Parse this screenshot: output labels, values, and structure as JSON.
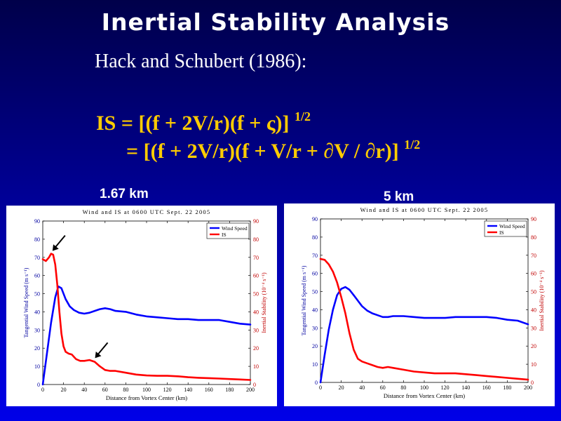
{
  "slide": {
    "title": "Inertial Stability Analysis",
    "subtitle": "Hack and Schubert (1986):",
    "equation_line1": "IS = [(f + 2V/r)(f + ς)]",
    "equation_line2": "= [(f + 2V/r)(f + V/r + ∂V / ∂r)]",
    "exponent": "1/2",
    "panel_label_left": "1.67 km",
    "panel_label_right": "5 km"
  },
  "colors": {
    "wind": "#0000ff",
    "is": "#ff0000",
    "title": "#ffffff",
    "equation": "#ffcc00"
  },
  "chart_data": [
    {
      "type": "line",
      "title": "Wind and IS at 0600 UTC Sept. 22 2005",
      "xlabel": "Distance from Vortex Center (km)",
      "ylabel": "Tangential Wind Speed (m s⁻¹)",
      "y2label": "Inertial Stability (10⁻⁴ s⁻¹)",
      "xlim": [
        0,
        200
      ],
      "ylim": [
        0,
        90
      ],
      "y2lim": [
        0,
        90
      ],
      "xticks": [
        0,
        20,
        40,
        60,
        80,
        100,
        120,
        140,
        160,
        180,
        200
      ],
      "yticks": [
        0,
        10,
        20,
        30,
        40,
        50,
        60,
        70,
        80,
        90
      ],
      "legend": "top-right",
      "series": [
        {
          "name": "Wind Speed",
          "axis": "left",
          "color": "#0000ff",
          "x": [
            0,
            4,
            8,
            12,
            15,
            18,
            22,
            26,
            30,
            35,
            40,
            45,
            50,
            55,
            60,
            65,
            70,
            80,
            90,
            100,
            110,
            120,
            130,
            140,
            150,
            160,
            170,
            180,
            190,
            200
          ],
          "y": [
            0,
            17,
            34,
            48,
            54,
            53,
            47,
            43,
            41,
            39.5,
            39,
            39.5,
            40.5,
            41.5,
            42,
            41.5,
            40.5,
            40,
            38.5,
            37.5,
            37,
            36.5,
            36,
            36,
            35.5,
            35.5,
            35.5,
            34.5,
            33.5,
            33
          ]
        },
        {
          "name": "IS",
          "axis": "right",
          "color": "#ff0000",
          "x": [
            0,
            3,
            6,
            8,
            10,
            12,
            14,
            16,
            18,
            20,
            22,
            25,
            28,
            32,
            36,
            40,
            45,
            50,
            55,
            60,
            65,
            70,
            80,
            90,
            100,
            110,
            120,
            130,
            140,
            150,
            160,
            170,
            180,
            190,
            200
          ],
          "y": [
            69,
            68,
            70,
            72,
            71.5,
            66,
            55,
            40,
            28,
            21,
            18,
            17,
            16.5,
            14,
            13,
            13,
            13.5,
            12.5,
            10,
            8,
            7.5,
            7.5,
            6.5,
            5.5,
            5,
            4.8,
            4.8,
            4.5,
            4,
            3.7,
            3.5,
            3.3,
            3,
            2.8,
            2.5
          ]
        }
      ],
      "annotations": [
        {
          "type": "arrow",
          "target": [
            8,
            72
          ]
        },
        {
          "type": "arrow",
          "target": [
            49,
            13
          ]
        }
      ]
    },
    {
      "type": "line",
      "title": "Wind and IS at 0600 UTC Sept. 22 2005",
      "xlabel": "Distance from Vortex Center (km)",
      "ylabel": "Tangential Wind Speed (m s⁻¹)",
      "y2label": "Inertial Stability (10⁻⁴ s⁻¹)",
      "xlim": [
        0,
        200
      ],
      "ylim": [
        0,
        90
      ],
      "y2lim": [
        0,
        90
      ],
      "xticks": [
        0,
        20,
        40,
        60,
        80,
        100,
        120,
        140,
        160,
        180,
        200
      ],
      "yticks": [
        0,
        10,
        20,
        30,
        40,
        50,
        60,
        70,
        80,
        90
      ],
      "legend": "top-right",
      "series": [
        {
          "name": "Wind Speed",
          "axis": "left",
          "color": "#0000ff",
          "x": [
            0,
            4,
            8,
            12,
            16,
            20,
            24,
            28,
            32,
            36,
            40,
            45,
            50,
            55,
            60,
            65,
            70,
            80,
            90,
            100,
            110,
            120,
            130,
            140,
            150,
            160,
            170,
            180,
            190,
            200
          ],
          "y": [
            0,
            15,
            29,
            40,
            48,
            51.5,
            52.5,
            51,
            48,
            45,
            42,
            39.5,
            38,
            37,
            36,
            36,
            36.5,
            36.5,
            36,
            35.5,
            35.5,
            35.5,
            36,
            36,
            36,
            36,
            35.5,
            34.5,
            34,
            32
          ]
        },
        {
          "name": "IS",
          "axis": "right",
          "color": "#ff0000",
          "x": [
            0,
            4,
            8,
            12,
            16,
            20,
            24,
            28,
            32,
            36,
            40,
            45,
            50,
            55,
            60,
            65,
            70,
            80,
            90,
            100,
            110,
            120,
            130,
            140,
            150,
            160,
            170,
            180,
            190,
            200
          ],
          "y": [
            68,
            67.5,
            65,
            61,
            55,
            47,
            38,
            27,
            18,
            13,
            11.5,
            10.5,
            9.5,
            8.5,
            8,
            8.5,
            8,
            7,
            6,
            5.5,
            5,
            5,
            5,
            4.5,
            4,
            3.5,
            3,
            2.5,
            2,
            1.5
          ]
        }
      ],
      "annotations": []
    }
  ]
}
